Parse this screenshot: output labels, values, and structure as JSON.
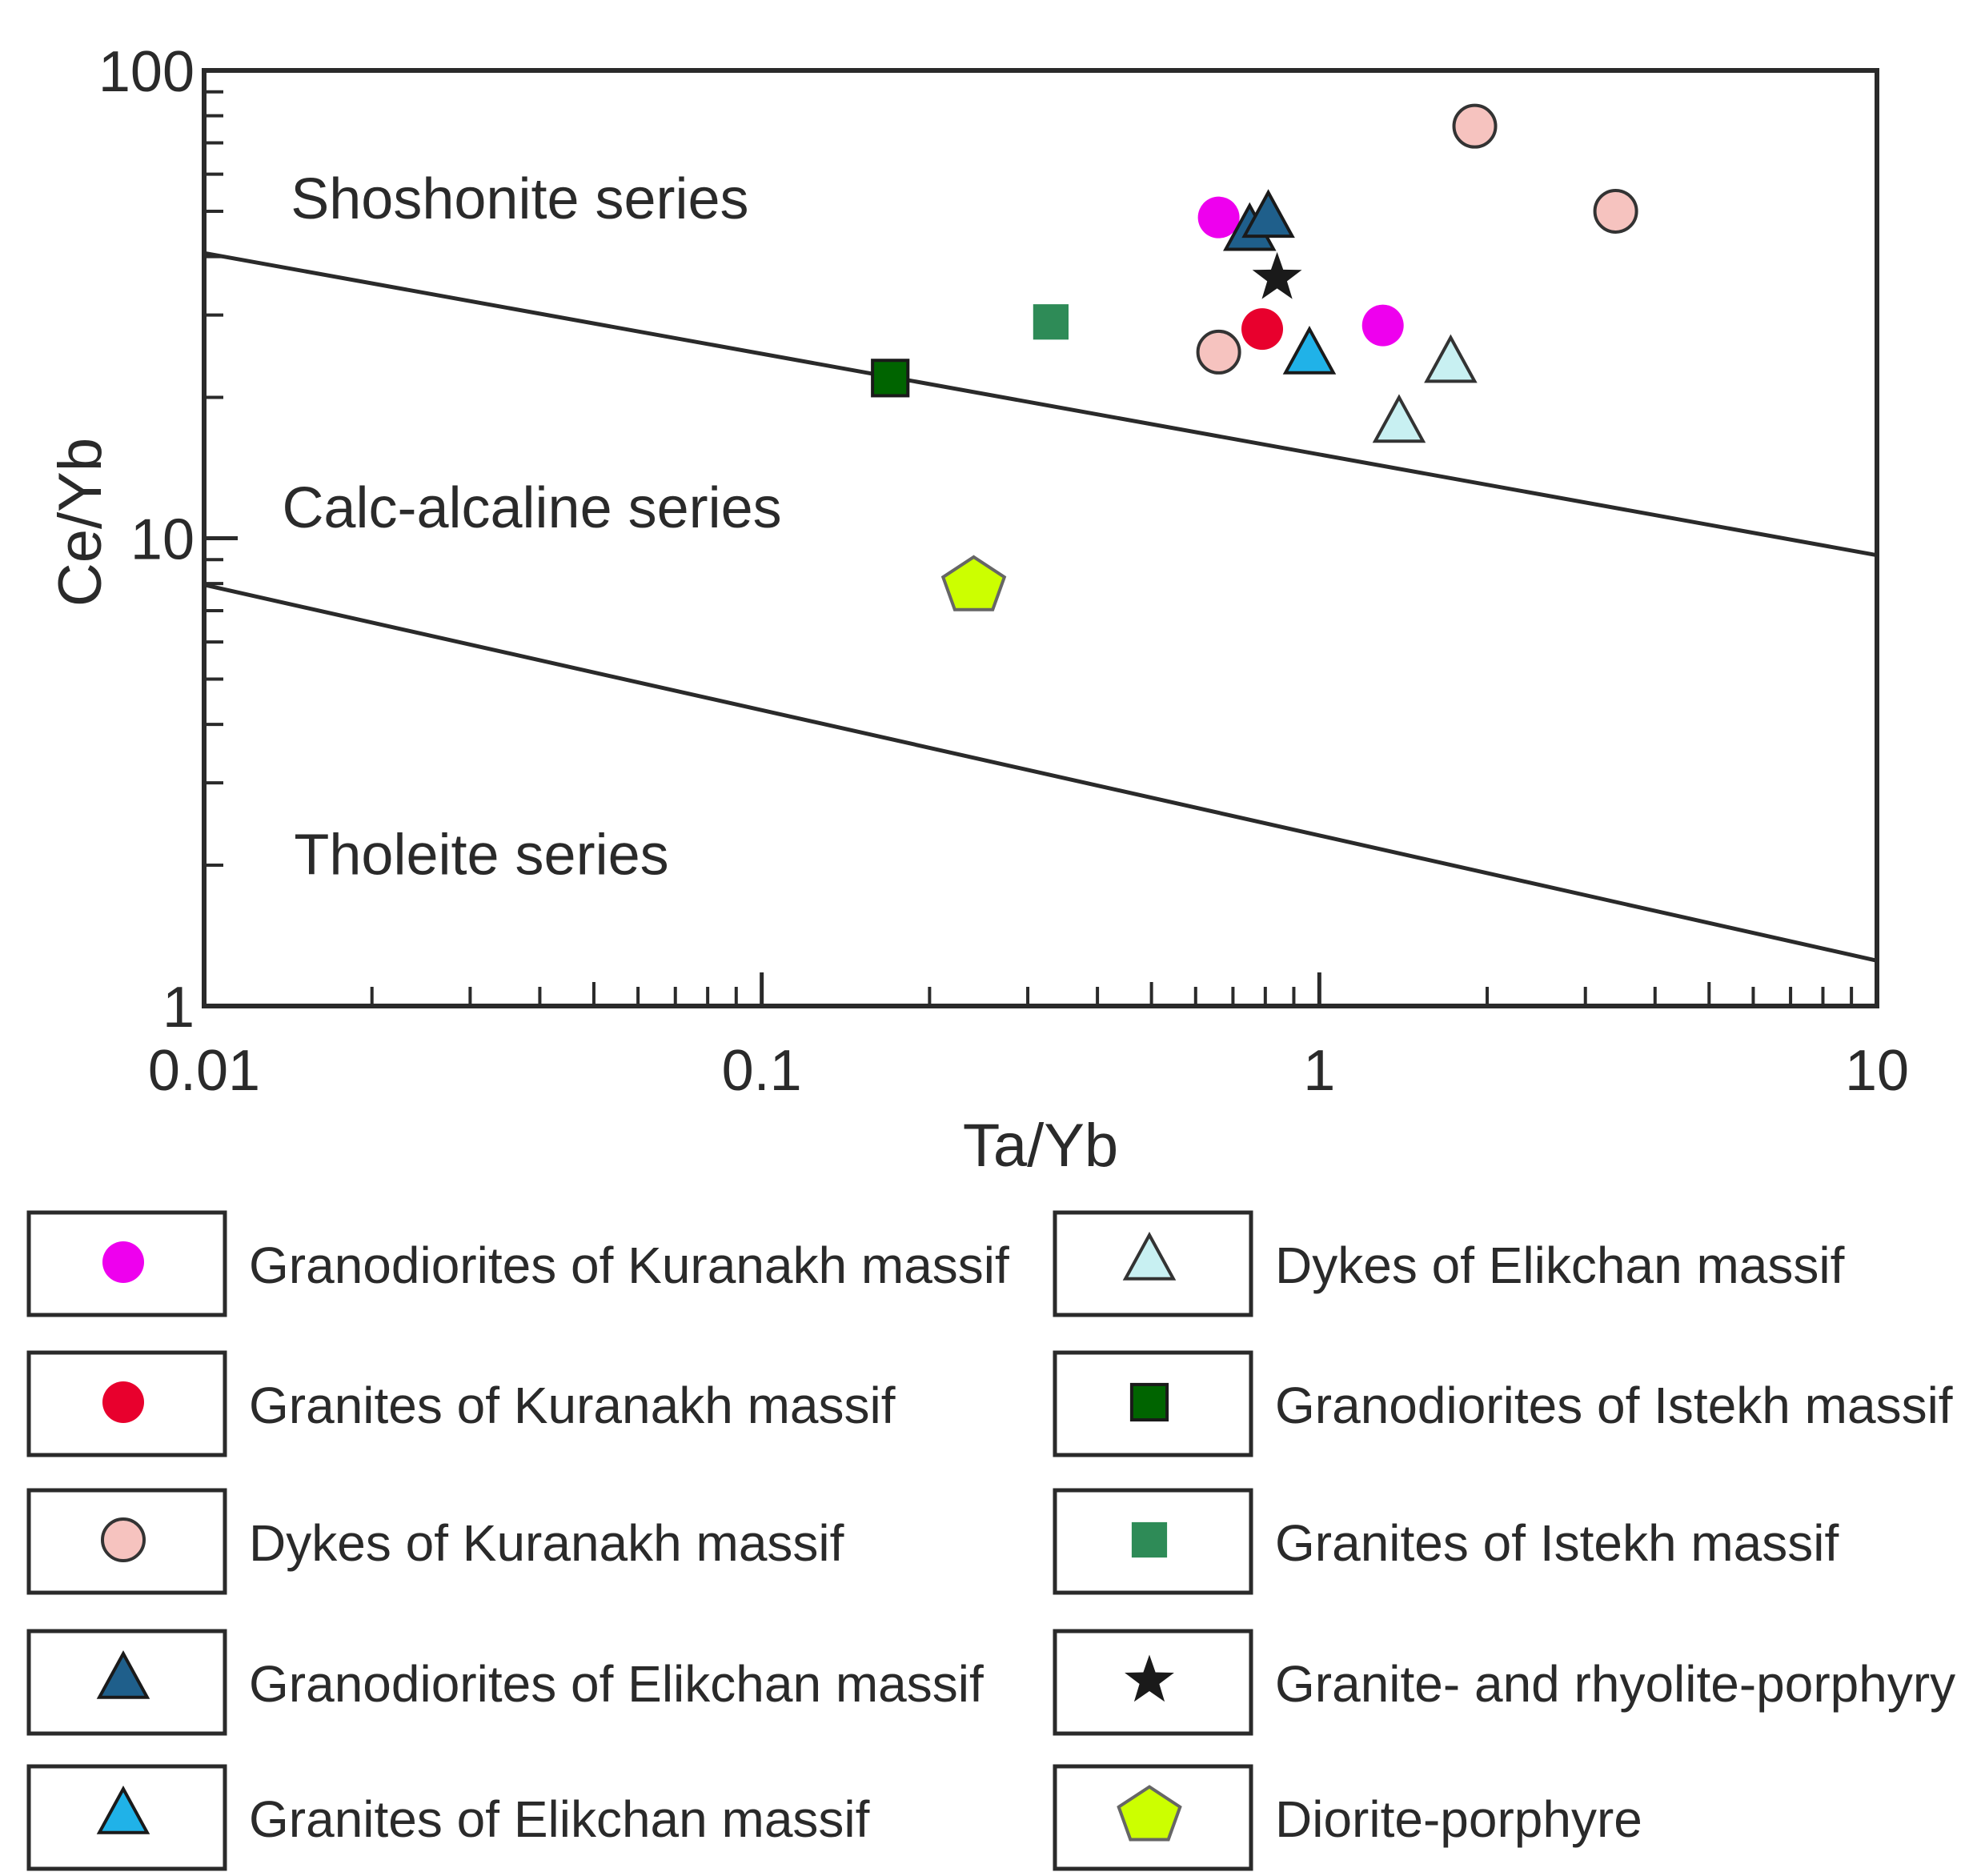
{
  "chart_data": {
    "type": "scatter",
    "xscale": "log",
    "yscale": "log",
    "xlabel": "Ta/Yb",
    "ylabel": "Ce/Yb",
    "xlim": [
      0.01,
      10
    ],
    "ylim": [
      1,
      100
    ],
    "xticks": [
      {
        "value": 0.01,
        "label": "0.01"
      },
      {
        "value": 0.1,
        "label": "0.1"
      },
      {
        "value": 1,
        "label": "1"
      },
      {
        "value": 10,
        "label": "10"
      }
    ],
    "yticks": [
      {
        "value": 1,
        "label": "1"
      },
      {
        "value": 10,
        "label": "10"
      },
      {
        "value": 100,
        "label": "100"
      }
    ],
    "region_labels": [
      {
        "text": "Shoshonite series",
        "x": 0.0143,
        "y": 53
      },
      {
        "text": "Calc-alcaline series",
        "x": 0.0138,
        "y": 11.6
      },
      {
        "text": "Tholeite series",
        "x": 0.0145,
        "y": 2.1
      }
    ],
    "boundaries": [
      {
        "name": "shoshonite-calc-alkaline",
        "points": [
          [
            0.01,
            40.7
          ],
          [
            10,
            9.2
          ]
        ]
      },
      {
        "name": "calc-alkaline-tholeite",
        "points": [
          [
            0.01,
            7.95
          ],
          [
            10,
            1.25
          ]
        ]
      }
    ],
    "series": [
      {
        "name": "Granodiorites of Kuranakh massif",
        "marker": "circle",
        "color": "#ee00ee",
        "stroke": "none",
        "points": [
          [
            0.66,
            48.5
          ],
          [
            1.3,
            28.5
          ]
        ]
      },
      {
        "name": "Granites of Kuranakh massif",
        "marker": "circle",
        "color": "#e8002d",
        "stroke": "none",
        "points": [
          [
            0.79,
            28
          ]
        ]
      },
      {
        "name": "Dykes of Kuranakh massif",
        "marker": "circle",
        "color": "#f6c3bf",
        "stroke": "#333333",
        "points": [
          [
            1.9,
            76
          ],
          [
            3.4,
            50
          ],
          [
            0.66,
            25
          ]
        ]
      },
      {
        "name": "Granodiorites of Elikchan massif",
        "marker": "triangle",
        "color": "#1f5f8b",
        "stroke": "#1a1a1a",
        "points": [
          [
            0.75,
            45
          ],
          [
            0.81,
            48
          ]
        ]
      },
      {
        "name": "Granites of Elikchan massif",
        "marker": "triangle",
        "color": "#20b2e8",
        "stroke": "#1a1a1a",
        "points": [
          [
            0.96,
            24.5
          ]
        ]
      },
      {
        "name": "Dykes of Elikchan massif",
        "marker": "triangle",
        "color": "#c8f0f2",
        "stroke": "#333333",
        "points": [
          [
            1.72,
            23.5
          ],
          [
            1.39,
            17.5
          ]
        ]
      },
      {
        "name": "Granodiorites of Istekh massif",
        "marker": "square",
        "color": "#006400",
        "stroke": "#1a1a1a",
        "points": [
          [
            0.17,
            22
          ]
        ]
      },
      {
        "name": "Granites of Istekh massif",
        "marker": "square",
        "color": "#2e8b57",
        "stroke": "none",
        "points": [
          [
            0.33,
            29
          ]
        ]
      },
      {
        "name": "Granite- and rhyolite-porphyry",
        "marker": "star",
        "color": "#1a1a1a",
        "stroke": "none",
        "points": [
          [
            0.84,
            36
          ]
        ]
      },
      {
        "name": "Diorite-porphyre",
        "marker": "pentagon",
        "color": "#ccff00",
        "stroke": "#666666",
        "points": [
          [
            0.24,
            7.9
          ]
        ]
      }
    ]
  }
}
